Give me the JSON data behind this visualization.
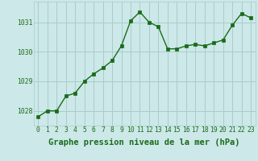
{
  "x": [
    0,
    1,
    2,
    3,
    4,
    5,
    6,
    7,
    8,
    9,
    10,
    11,
    12,
    13,
    14,
    15,
    16,
    17,
    18,
    19,
    20,
    21,
    22,
    23
  ],
  "y": [
    1027.8,
    1028.0,
    1028.0,
    1028.5,
    1028.6,
    1029.0,
    1029.25,
    1029.45,
    1029.7,
    1030.2,
    1031.05,
    1031.35,
    1031.0,
    1030.85,
    1030.1,
    1030.1,
    1030.2,
    1030.25,
    1030.2,
    1030.3,
    1030.4,
    1030.9,
    1031.3,
    1031.15
  ],
  "line_color": "#1a6b1a",
  "marker_color": "#1a6b1a",
  "bg_color": "#cce8e8",
  "grid_color": "#aacccc",
  "axis_label_color": "#1a6b1a",
  "tick_color": "#1a6b1a",
  "xlabel": "Graphe pression niveau de la mer (hPa)",
  "ylim": [
    1027.5,
    1031.7
  ],
  "yticks": [
    1028,
    1029,
    1030,
    1031
  ],
  "xticks": [
    0,
    1,
    2,
    3,
    4,
    5,
    6,
    7,
    8,
    9,
    10,
    11,
    12,
    13,
    14,
    15,
    16,
    17,
    18,
    19,
    20,
    21,
    22,
    23
  ],
  "xlabel_fontsize": 7.5,
  "tick_fontsize": 5.8,
  "marker_size": 2.5,
  "line_width": 1.0
}
